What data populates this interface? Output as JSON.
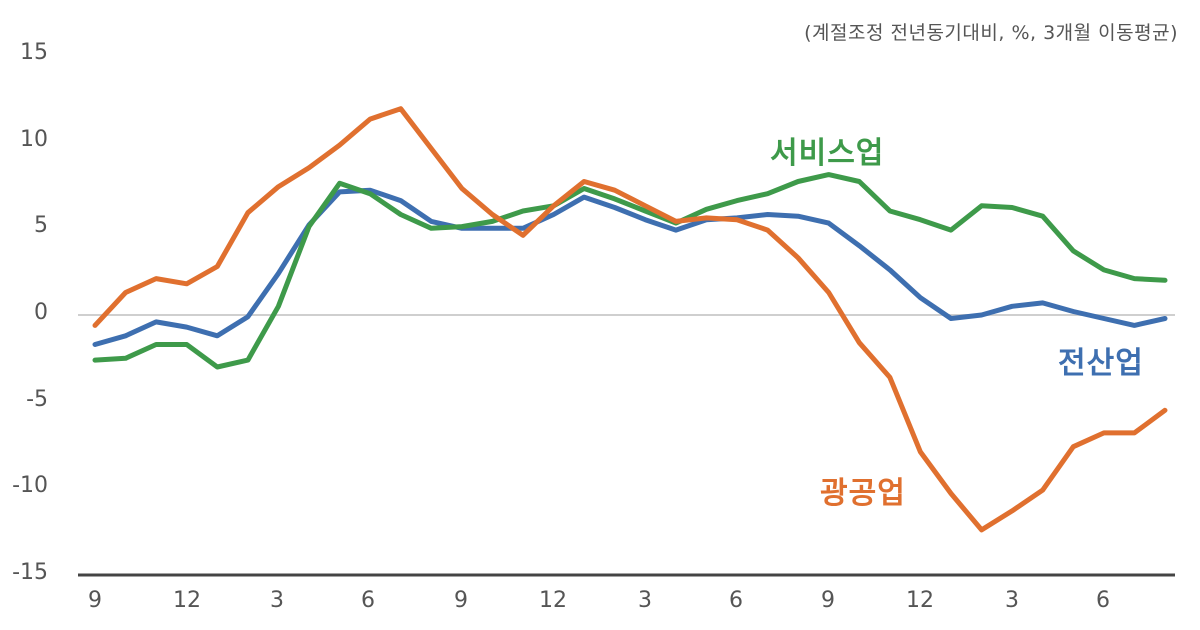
{
  "chart_data": {
    "type": "line",
    "title": "",
    "subtitle": "(계절조정 전년동기대비, %, 3개월 이동평균)",
    "xlabel": "",
    "ylabel": "%",
    "ylim": [
      -15,
      15
    ],
    "yticks": [
      15,
      10,
      5,
      0,
      -5,
      -10,
      -15
    ],
    "xtick_labels": [
      "9",
      "12",
      "3",
      "6",
      "9",
      "12",
      "3",
      "6",
      "9",
      "12",
      "3",
      "6"
    ],
    "year_labels_note": "year labels below x-axis are clipped at image bottom edge",
    "x": [
      "9",
      "10",
      "11",
      "12",
      "1",
      "2",
      "3",
      "4",
      "5",
      "6",
      "7",
      "8",
      "9",
      "10",
      "11",
      "12",
      "1",
      "2",
      "3",
      "4",
      "5",
      "6",
      "7",
      "8",
      "9",
      "10",
      "11",
      "12",
      "1",
      "2",
      "3",
      "4",
      "5",
      "6",
      "7",
      "8"
    ],
    "grid": false,
    "zero_line": true,
    "legend_position": "inline labels",
    "series": [
      {
        "name": "전산업",
        "color": "#3E6FB0",
        "values": [
          -1.7,
          -1.2,
          -0.4,
          -0.7,
          -1.2,
          -0.1,
          2.4,
          5.2,
          7.1,
          7.2,
          6.6,
          5.4,
          5.0,
          5.0,
          5.0,
          5.8,
          6.8,
          6.2,
          5.5,
          4.9,
          5.5,
          5.6,
          5.8,
          5.7,
          5.3,
          4.0,
          2.6,
          1.0,
          -0.2,
          0.0,
          0.5,
          0.7,
          0.2,
          -0.2,
          -0.6,
          -0.2
        ]
      },
      {
        "name": "서비스업",
        "color": "#3E9A4A",
        "values": [
          -2.6,
          -2.5,
          -1.7,
          -1.7,
          -3.0,
          -2.6,
          0.5,
          5.1,
          7.6,
          7.0,
          5.8,
          5.0,
          5.1,
          5.4,
          6.0,
          6.3,
          7.3,
          6.7,
          6.0,
          5.3,
          6.1,
          6.6,
          7.0,
          7.7,
          8.1,
          7.7,
          6.0,
          5.5,
          4.9,
          6.3,
          6.2,
          5.7,
          3.7,
          2.6,
          2.1,
          2.0
        ]
      },
      {
        "name": "광공업",
        "color": "#E0702F",
        "values": [
          -0.6,
          1.3,
          2.1,
          1.8,
          2.8,
          5.9,
          7.4,
          8.5,
          9.8,
          11.3,
          11.9,
          9.6,
          7.3,
          5.8,
          4.6,
          6.3,
          7.7,
          7.2,
          6.3,
          5.4,
          5.6,
          5.5,
          4.9,
          3.3,
          1.3,
          -1.6,
          -3.6,
          -7.9,
          -10.3,
          -12.4,
          -11.3,
          -10.1,
          -7.6,
          -6.8,
          -6.8,
          -5.5
        ]
      }
    ]
  },
  "labels": {
    "subtitle": "(계절조정 전년동기대비, %, 3개월 이동평균)",
    "services": "서비스업",
    "all_industry": "전산업",
    "mining_manufacturing": "광공업"
  },
  "axis": {
    "y": [
      "15",
      "10",
      "5",
      "0",
      "-5",
      "-10",
      "-15"
    ],
    "x": [
      "9",
      "12",
      "3",
      "6",
      "9",
      "12",
      "3",
      "6",
      "9",
      "12",
      "3",
      "6"
    ]
  }
}
